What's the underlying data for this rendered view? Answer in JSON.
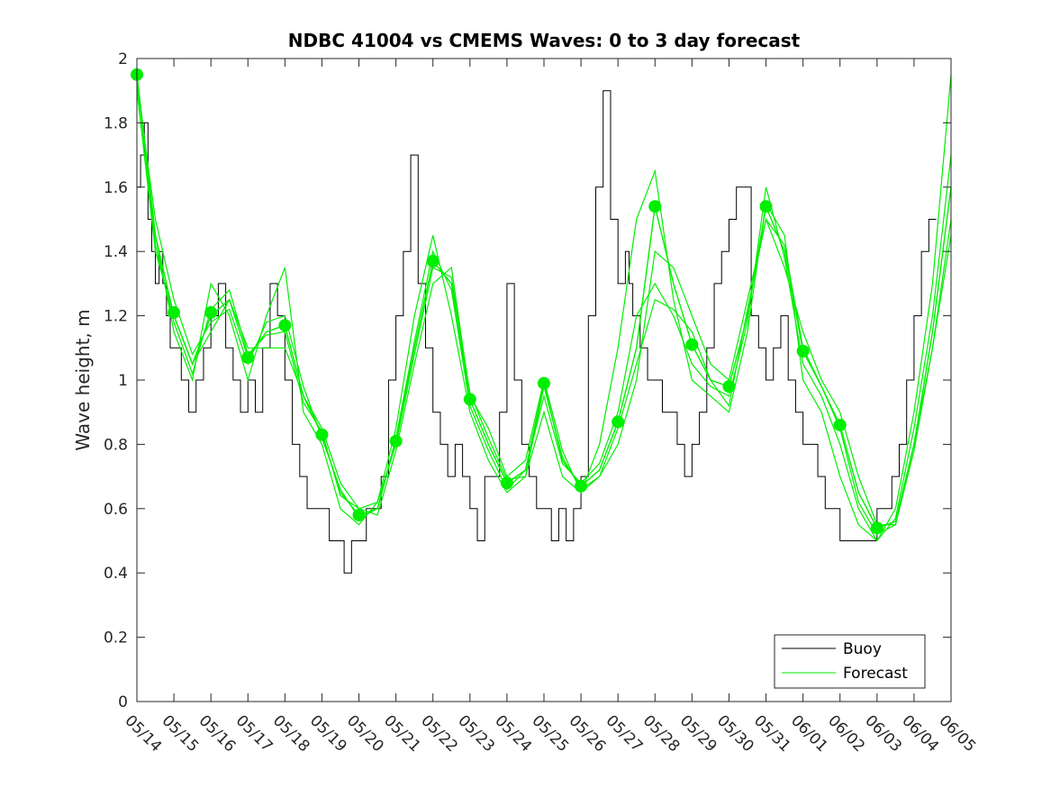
{
  "chart_data": {
    "type": "line",
    "title": "NDBC 41004 vs CMEMS Waves: 0 to 3 day forecast",
    "xlabel": "",
    "ylabel": "Wave height, m",
    "ylim": [
      0,
      2
    ],
    "yticks": [
      "0",
      "0.2",
      "0.4",
      "0.6",
      "0.8",
      "1",
      "1.2",
      "1.4",
      "1.6",
      "1.8",
      "2"
    ],
    "xticks": [
      "05/14",
      "05/15",
      "05/16",
      "05/17",
      "05/18",
      "05/19",
      "05/20",
      "05/21",
      "05/22",
      "05/23",
      "05/24",
      "05/25",
      "05/26",
      "05/27",
      "05/28",
      "05/29",
      "05/30",
      "05/31",
      "06/01",
      "06/02",
      "06/03",
      "06/04",
      "06/05"
    ],
    "grid": false,
    "legend_position": "bottom-right",
    "colors": {
      "buoy": "#000000",
      "forecast": "#00ee00"
    },
    "series": [
      {
        "name": "Buoy",
        "x_days": [
          0,
          0.1,
          0.2,
          0.3,
          0.4,
          0.5,
          0.6,
          0.7,
          0.8,
          0.9,
          1.0,
          1.2,
          1.4,
          1.6,
          1.8,
          2.0,
          2.2,
          2.4,
          2.6,
          2.8,
          3.0,
          3.2,
          3.4,
          3.6,
          3.8,
          4.0,
          4.2,
          4.4,
          4.6,
          4.8,
          5.0,
          5.2,
          5.4,
          5.6,
          5.8,
          6.0,
          6.2,
          6.4,
          6.6,
          6.8,
          7.0,
          7.2,
          7.4,
          7.6,
          7.8,
          8.0,
          8.2,
          8.4,
          8.6,
          8.8,
          9.0,
          9.2,
          9.4,
          9.6,
          9.8,
          10.0,
          10.2,
          10.4,
          10.6,
          10.8,
          11.0,
          11.2,
          11.4,
          11.6,
          11.8,
          12.0,
          12.2,
          12.4,
          12.6,
          12.8,
          13.0,
          13.2,
          13.3,
          13.4,
          13.5,
          13.6,
          13.8,
          14.0,
          14.2,
          14.4,
          14.6,
          14.8,
          15.0,
          15.2,
          15.4,
          15.6,
          15.8,
          16.0,
          16.2,
          16.4,
          16.6,
          16.8,
          17.0,
          17.2,
          17.4,
          17.6,
          17.8,
          18.0,
          18.2,
          18.4,
          18.6,
          18.8,
          19.0,
          19.2,
          19.4,
          19.6,
          19.8,
          20.0,
          20.2,
          20.4,
          20.6,
          20.8,
          21.0,
          21.2,
          21.4,
          21.6
        ],
        "values": [
          1.6,
          1.7,
          1.8,
          1.5,
          1.4,
          1.3,
          1.4,
          1.3,
          1.2,
          1.1,
          1.1,
          1.0,
          0.9,
          1.0,
          1.1,
          1.2,
          1.3,
          1.1,
          1.0,
          0.9,
          1.0,
          0.9,
          1.1,
          1.3,
          1.2,
          1.0,
          0.8,
          0.7,
          0.6,
          0.6,
          0.6,
          0.5,
          0.5,
          0.4,
          0.5,
          0.5,
          0.6,
          0.6,
          0.7,
          1.0,
          1.2,
          1.4,
          1.7,
          1.3,
          1.1,
          0.9,
          0.8,
          0.7,
          0.8,
          0.7,
          0.6,
          0.5,
          0.7,
          0.7,
          0.9,
          1.3,
          1.0,
          0.8,
          0.7,
          0.6,
          0.6,
          0.5,
          0.6,
          0.5,
          0.6,
          0.7,
          1.2,
          1.6,
          1.9,
          1.5,
          1.3,
          1.4,
          1.3,
          1.2,
          1.2,
          1.1,
          1.0,
          1.0,
          0.9,
          0.9,
          0.8,
          0.7,
          0.8,
          0.9,
          1.1,
          1.3,
          1.4,
          1.5,
          1.6,
          1.6,
          1.2,
          1.1,
          1.0,
          1.1,
          1.2,
          1.0,
          0.9,
          0.8,
          0.8,
          0.7,
          0.6,
          0.6,
          0.5,
          0.5,
          0.5,
          0.5,
          0.5,
          0.6,
          0.6,
          0.7,
          0.8,
          1.0,
          1.2,
          1.4,
          1.5,
          1.5
        ]
      },
      {
        "name": "Forecast",
        "x_days": [
          0,
          0.5,
          1.0,
          1.5,
          2.0,
          2.5,
          3.0,
          3.5,
          4.0,
          4.5,
          5.0,
          5.5,
          6.0,
          6.5,
          7.0,
          7.5,
          8.0,
          8.5,
          9.0,
          9.5,
          10.0,
          10.5,
          11.0,
          11.5,
          12.0,
          12.5,
          13.0,
          13.5,
          14.0,
          14.5,
          15.0,
          15.5,
          16.0,
          16.5,
          17.0,
          17.5,
          18.0,
          18.5,
          19.0,
          19.5,
          20.0,
          20.5,
          21.0,
          21.5,
          22.0
        ],
        "values": [
          1.95,
          1.45,
          1.2,
          1.05,
          1.2,
          1.25,
          1.07,
          1.15,
          1.17,
          0.95,
          0.83,
          0.65,
          0.58,
          0.6,
          0.81,
          1.1,
          1.37,
          1.3,
          0.94,
          0.8,
          0.68,
          0.72,
          0.99,
          0.75,
          0.67,
          0.72,
          0.87,
          1.1,
          1.54,
          1.3,
          1.11,
          1.0,
          0.98,
          1.2,
          1.54,
          1.4,
          1.09,
          0.98,
          0.86,
          0.65,
          0.54,
          0.56,
          0.8,
          1.15,
          1.6
        ],
        "markers": [
          1.95,
          1.21,
          1.21,
          1.07,
          1.17,
          0.83,
          0.58,
          0.81,
          1.37,
          0.94,
          0.68,
          0.99,
          0.67,
          0.87,
          1.54,
          1.11,
          0.98,
          1.54,
          1.09,
          0.86,
          0.54
        ],
        "members": [
          [
            1.95,
            1.45,
            1.15,
            1.0,
            1.3,
            1.2,
            1.0,
            1.2,
            1.35,
            0.9,
            0.8,
            0.6,
            0.55,
            0.62,
            0.85,
            1.2,
            1.45,
            1.2,
            0.9,
            0.75,
            0.65,
            0.7,
            0.9,
            0.7,
            0.65,
            0.8,
            1.1,
            1.5,
            1.65,
            1.25,
            1.0,
            0.95,
            0.9,
            1.15,
            1.55,
            1.45,
            1.0,
            0.9,
            0.7,
            0.55,
            0.5,
            0.6,
            0.9,
            1.3,
            1.95
          ],
          [
            1.9,
            1.4,
            1.2,
            1.05,
            1.15,
            1.25,
            1.1,
            1.1,
            1.1,
            0.95,
            0.85,
            0.68,
            0.6,
            0.58,
            0.78,
            1.05,
            1.3,
            1.35,
            0.95,
            0.85,
            0.7,
            0.75,
            1.0,
            0.78,
            0.65,
            0.7,
            0.8,
            1.0,
            1.4,
            1.35,
            1.2,
            1.05,
            1.0,
            1.25,
            1.5,
            1.35,
            1.15,
            1.0,
            0.9,
            0.7,
            0.55,
            0.55,
            0.78,
            1.1,
            1.45
          ],
          [
            1.92,
            1.5,
            1.25,
            1.08,
            1.18,
            1.22,
            1.05,
            1.18,
            1.2,
            0.98,
            0.82,
            0.66,
            0.57,
            0.6,
            0.82,
            1.12,
            1.4,
            1.28,
            0.92,
            0.78,
            0.66,
            0.72,
            0.95,
            0.74,
            0.68,
            0.74,
            0.9,
            1.2,
            1.3,
            1.2,
            1.05,
            0.98,
            0.95,
            1.18,
            1.6,
            1.38,
            1.05,
            0.95,
            0.8,
            0.6,
            0.5,
            0.57,
            0.85,
            1.2,
            1.7
          ],
          [
            1.94,
            1.42,
            1.18,
            1.02,
            1.22,
            1.28,
            1.08,
            1.14,
            1.15,
            0.93,
            0.84,
            0.64,
            0.6,
            0.62,
            0.8,
            1.08,
            1.35,
            1.32,
            0.96,
            0.82,
            0.69,
            0.7,
            0.98,
            0.76,
            0.66,
            0.7,
            0.85,
            1.05,
            1.25,
            1.22,
            1.15,
            1.0,
            0.92,
            1.22,
            1.5,
            1.42,
            1.1,
            0.98,
            0.85,
            0.62,
            0.52,
            0.55,
            0.8,
            1.1,
            1.5
          ]
        ]
      }
    ]
  }
}
